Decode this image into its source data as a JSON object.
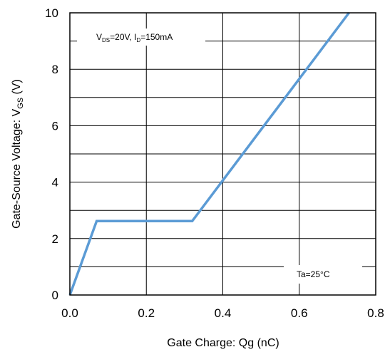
{
  "chart_data": {
    "type": "line",
    "xlabel": "Gate Charge: Qg (nC)",
    "ylabel_main": "Gate-Source Voltage: V",
    "ylabel_sub": "GS",
    "ylabel_unit": " (V)",
    "xlim": [
      0,
      0.8
    ],
    "ylim": [
      0,
      10
    ],
    "x_ticks": [
      "0.0",
      "0.2",
      "0.4",
      "0.6",
      "0.8"
    ],
    "y_ticks": [
      "0",
      "2",
      "4",
      "6",
      "8",
      "10"
    ],
    "x_tick_values": [
      0,
      0.2,
      0.4,
      0.6,
      0.8
    ],
    "y_tick_values": [
      0,
      2,
      4,
      6,
      8,
      10
    ],
    "grid": true,
    "line_color": "#5b9bd5",
    "series": [
      {
        "x": [
          0.0,
          0.07,
          0.32,
          0.73
        ],
        "y": [
          0.0,
          2.62,
          2.62,
          10.0
        ]
      }
    ],
    "annotations": {
      "conditions": {
        "v": "V",
        "ds_sub": "DS",
        "mid": "=20V, I",
        "d_sub": "D",
        "end": "=150mA"
      },
      "temperature": "Ta=25°C"
    }
  }
}
